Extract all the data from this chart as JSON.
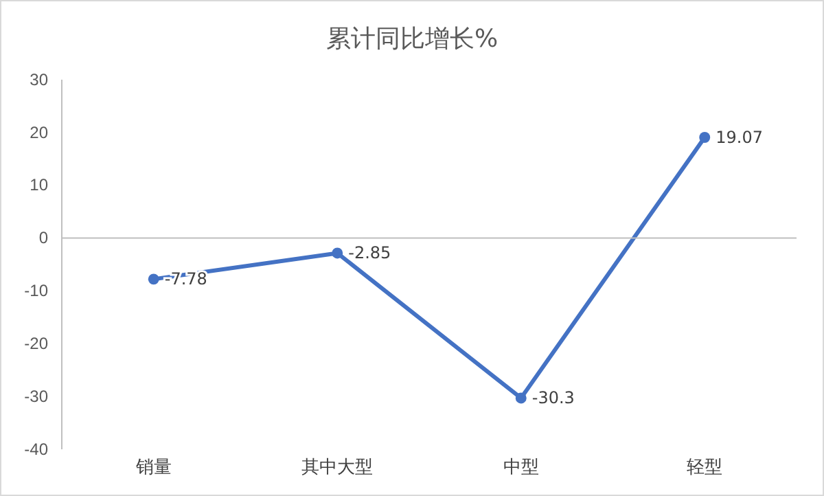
{
  "chart_data": {
    "type": "line",
    "title": "累计同比增长%",
    "categories": [
      "销量",
      "其中大型",
      "中型",
      "轻型"
    ],
    "series": [
      {
        "color": "#4472c4",
        "values": [
          -7.78,
          -2.85,
          -30.3,
          19.07
        ]
      }
    ],
    "ylim": [
      -40,
      30
    ],
    "yticks": [
      -40,
      -30,
      -20,
      -10,
      0,
      10,
      20,
      30
    ],
    "marker": "circle",
    "data_labels": true
  }
}
